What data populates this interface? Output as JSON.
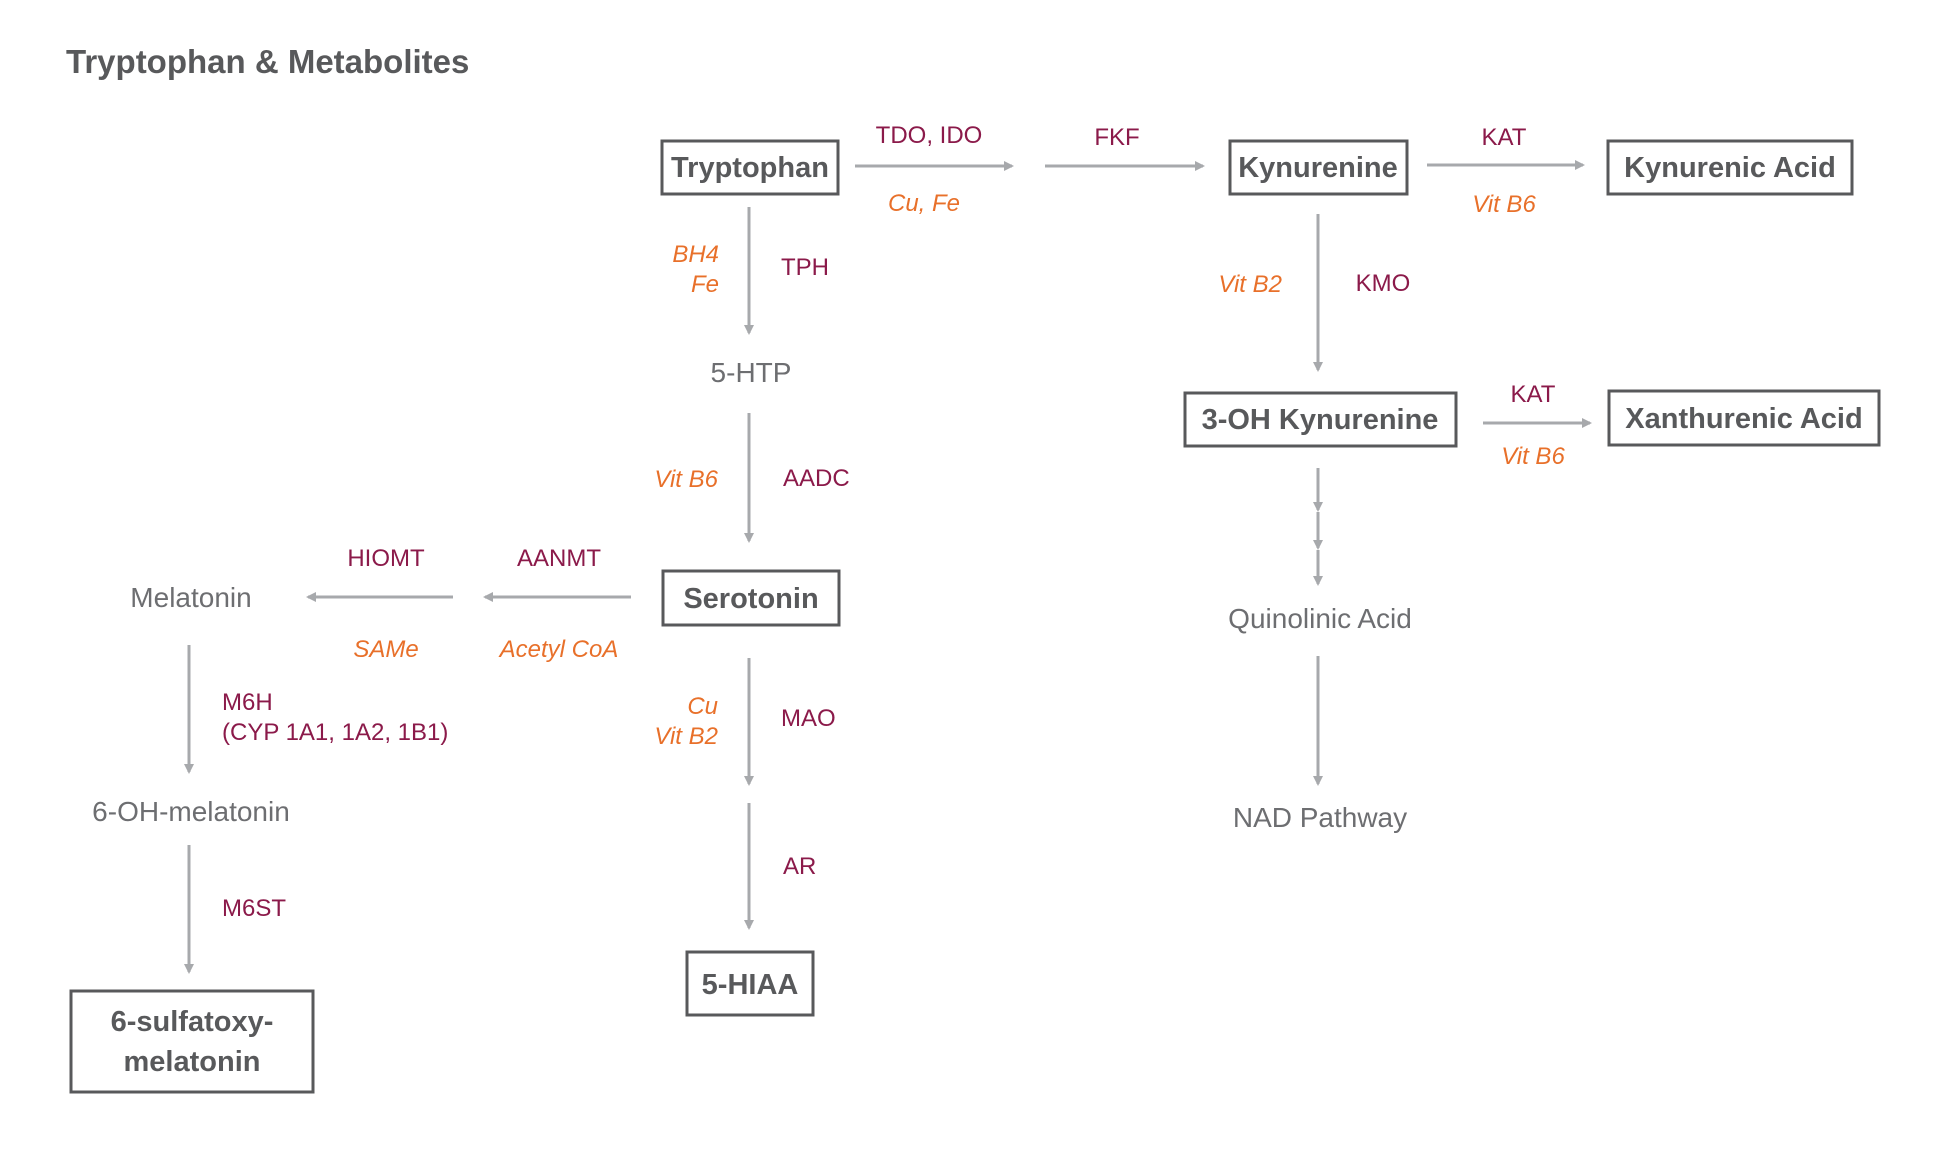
{
  "title": "Tryptophan & Metabolites",
  "colors": {
    "text_dark": "#58595b",
    "text_light": "#6d6e71",
    "enzyme": "#8b1a4a",
    "cofactor": "#e8702a",
    "arrow": "#a7a9ac",
    "box_border": "#58595b"
  },
  "nodes": {
    "tryptophan": "Tryptophan",
    "kynurenine": "Kynurenine",
    "kynurenic_acid": "Kynurenic Acid",
    "oh_kynurenine": "3-OH Kynurenine",
    "xanthurenic_acid": "Xanthurenic Acid",
    "quinolinic_acid": "Quinolinic Acid",
    "nad_pathway": "NAD Pathway",
    "htp": "5-HTP",
    "serotonin": "Serotonin",
    "hiaa": "5-HIAA",
    "melatonin": "Melatonin",
    "oh_melatonin": "6-OH-melatonin",
    "sulfatoxy_line1": "6-sulfatoxy-",
    "sulfatoxy_line2": "melatonin"
  },
  "enzymes": {
    "tdo_ido": "TDO, IDO",
    "fkf": "FKF",
    "kat_1": "KAT",
    "kmo": "KMO",
    "kat_2": "KAT",
    "tph": "TPH",
    "aadc": "AADC",
    "mao": "MAO",
    "ar": "AR",
    "aanmt": "AANMT",
    "hiomt": "HIOMT",
    "m6h_line1": "M6H",
    "m6h_line2": "(CYP 1A1, 1A2, 1B1)",
    "m6st": "M6ST"
  },
  "cofactors": {
    "cu_fe": "Cu, Fe",
    "vit_b6_kat1": "Vit B6",
    "vit_b2_kmo": "Vit B2",
    "vit_b6_kat2": "Vit B6",
    "bh4": "BH4",
    "fe": "Fe",
    "vit_b6_aadc": "Vit B6",
    "cu": "Cu",
    "vit_b2_mao": "Vit B2",
    "acetyl_coa": "Acetyl CoA",
    "same": "SAMe"
  }
}
